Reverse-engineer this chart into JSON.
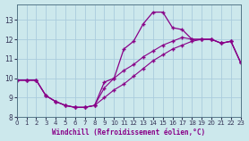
{
  "xlabel": "Windchill (Refroidissement éolien,°C)",
  "bg_color": "#cce8ec",
  "grid_color": "#aaccdd",
  "line_color": "#880088",
  "spine_color": "#557788",
  "tick_color": "#333355",
  "xlim": [
    0,
    23
  ],
  "ylim": [
    8,
    13.8
  ],
  "yticks": [
    8,
    9,
    10,
    11,
    12,
    13
  ],
  "xticks": [
    0,
    1,
    2,
    3,
    4,
    5,
    6,
    7,
    8,
    9,
    10,
    11,
    12,
    13,
    14,
    15,
    16,
    17,
    18,
    19,
    20,
    21,
    22,
    23
  ],
  "hours": [
    0,
    1,
    2,
    3,
    4,
    5,
    6,
    7,
    8,
    9,
    10,
    11,
    12,
    13,
    14,
    15,
    16,
    17,
    18,
    19,
    20,
    21,
    22,
    23
  ],
  "temp": [
    9.9,
    9.9,
    9.9,
    9.1,
    8.8,
    8.6,
    8.5,
    8.5,
    8.6,
    9.8,
    10.0,
    11.5,
    11.9,
    12.8,
    13.4,
    13.4,
    12.6,
    12.5,
    12.0,
    12.0,
    12.0,
    11.8,
    11.9,
    10.8
  ],
  "wc1": [
    9.9,
    9.9,
    9.9,
    9.1,
    8.8,
    8.6,
    8.5,
    8.5,
    8.6,
    9.5,
    10.0,
    10.4,
    10.7,
    11.1,
    11.4,
    11.7,
    11.9,
    12.1,
    12.0,
    12.0,
    12.0,
    11.8,
    11.9,
    10.8
  ],
  "wc2": [
    9.9,
    9.9,
    9.9,
    9.1,
    8.8,
    8.6,
    8.5,
    8.5,
    8.6,
    9.0,
    9.4,
    9.7,
    10.1,
    10.5,
    10.9,
    11.2,
    11.5,
    11.7,
    11.9,
    12.0,
    12.0,
    11.8,
    11.9,
    10.8
  ]
}
